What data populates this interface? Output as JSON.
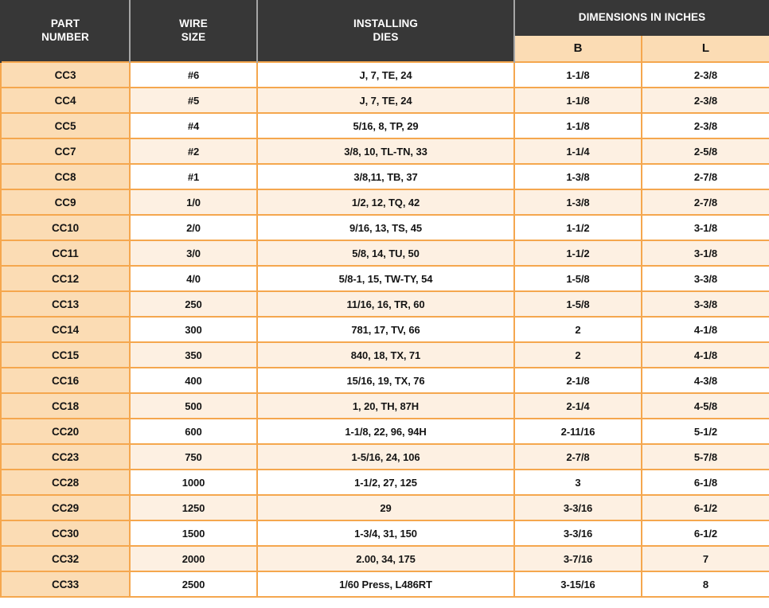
{
  "colors": {
    "header_bg": "#373737",
    "header_text": "#ffffff",
    "peach": "#FBDCB4",
    "row_tint": "#FDF0E2",
    "row_white": "#FFFFFF",
    "grid_orange": "#F5A74E",
    "header_divider": "#A5A5A5",
    "body_text": "#141414"
  },
  "table": {
    "headers": {
      "part_number": "PART\nNUMBER",
      "wire_size": "WIRE\nSIZE",
      "installing_dies": "INSTALLING\nDIES",
      "dimensions_group": "DIMENSIONS IN INCHES",
      "dim_b": "B",
      "dim_l": "L"
    },
    "rows": [
      {
        "part": "CC3",
        "wire": "#6",
        "dies": "J, 7, TE, 24",
        "b": "1-1/8",
        "l": "2-3/8"
      },
      {
        "part": "CC4",
        "wire": "#5",
        "dies": "J, 7, TE, 24",
        "b": "1-1/8",
        "l": "2-3/8"
      },
      {
        "part": "CC5",
        "wire": "#4",
        "dies": "5/16, 8, TP, 29",
        "b": "1-1/8",
        "l": "2-3/8"
      },
      {
        "part": "CC7",
        "wire": "#2",
        "dies": "3/8, 10, TL-TN, 33",
        "b": "1-1/4",
        "l": "2-5/8"
      },
      {
        "part": "CC8",
        "wire": "#1",
        "dies": "3/8,11, TB, 37",
        "b": "1-3/8",
        "l": "2-7/8"
      },
      {
        "part": "CC9",
        "wire": "1/0",
        "dies": "1/2, 12, TQ, 42",
        "b": "1-3/8",
        "l": "2-7/8"
      },
      {
        "part": "CC10",
        "wire": "2/0",
        "dies": "9/16, 13, TS, 45",
        "b": "1-1/2",
        "l": "3-1/8"
      },
      {
        "part": "CC11",
        "wire": "3/0",
        "dies": "5/8, 14, TU, 50",
        "b": "1-1/2",
        "l": "3-1/8"
      },
      {
        "part": "CC12",
        "wire": "4/0",
        "dies": "5/8-1, 15, TW-TY, 54",
        "b": "1-5/8",
        "l": "3-3/8"
      },
      {
        "part": "CC13",
        "wire": "250",
        "dies": "11/16, 16, TR, 60",
        "b": "1-5/8",
        "l": "3-3/8"
      },
      {
        "part": "CC14",
        "wire": "300",
        "dies": "781, 17, TV, 66",
        "b": "2",
        "l": "4-1/8"
      },
      {
        "part": "CC15",
        "wire": "350",
        "dies": "840, 18, TX, 71",
        "b": "2",
        "l": "4-1/8"
      },
      {
        "part": "CC16",
        "wire": "400",
        "dies": "15/16, 19, TX, 76",
        "b": "2-1/8",
        "l": "4-3/8"
      },
      {
        "part": "CC18",
        "wire": "500",
        "dies": "1, 20, TH, 87H",
        "b": "2-1/4",
        "l": "4-5/8"
      },
      {
        "part": "CC20",
        "wire": "600",
        "dies": "1-1/8, 22, 96, 94H",
        "b": "2-11/16",
        "l": "5-1/2"
      },
      {
        "part": "CC23",
        "wire": "750",
        "dies": "1-5/16, 24, 106",
        "b": "2-7/8",
        "l": "5-7/8"
      },
      {
        "part": "CC28",
        "wire": "1000",
        "dies": "1-1/2, 27, 125",
        "b": "3",
        "l": "6-1/8"
      },
      {
        "part": "CC29",
        "wire": "1250",
        "dies": "29",
        "b": "3-3/16",
        "l": "6-1/2"
      },
      {
        "part": "CC30",
        "wire": "1500",
        "dies": "1-3/4, 31, 150",
        "b": "3-3/16",
        "l": "6-1/2"
      },
      {
        "part": "CC32",
        "wire": "2000",
        "dies": "2.00, 34, 175",
        "b": "3-7/16",
        "l": "7"
      },
      {
        "part": "CC33",
        "wire": "2500",
        "dies": "1/60 Press, L486RT",
        "b": "3-15/16",
        "l": "8"
      }
    ]
  }
}
